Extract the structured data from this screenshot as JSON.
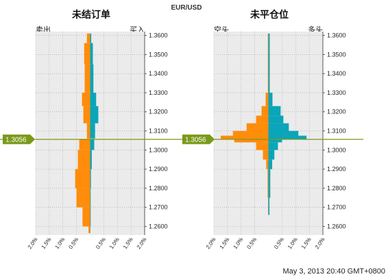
{
  "chart_data": {
    "title": "EUR/USD",
    "timestamp": "May 3, 2013 20:40 GMT+0800",
    "current_price": "1.3056",
    "colors": {
      "buy": "#0aa5b8",
      "sell": "#ff8c0a",
      "price_line": "#7a9a1a",
      "plot_bg": "#ebebeb"
    },
    "panels": [
      {
        "type": "bar",
        "orientation": "horizontal",
        "title": "未结订单",
        "left_label": "卖出",
        "right_label": "买入",
        "y_ticks": [
          "1.3600",
          "1.3500",
          "1.3400",
          "1.3300",
          "1.3200",
          "1.3100",
          "1.3000",
          "1.2900",
          "1.2800",
          "1.2700",
          "1.2600"
        ],
        "x_ticks": [
          "2.0%",
          "1.5%",
          "1.0%",
          "0.5%",
          "0.5%",
          "1.0%",
          "1.5%",
          "2.0%"
        ],
        "xlim": [
          -2.0,
          2.0
        ],
        "ylim": [
          1.2555,
          1.362
        ],
        "series": [
          {
            "name": "卖出",
            "color": "#ff8c0a",
            "ranges": [
              {
                "from": 1.361,
                "to": 1.356,
                "value": 0.12
              },
              {
                "from": 1.356,
                "to": 1.345,
                "value": 0.22
              },
              {
                "from": 1.345,
                "to": 1.33,
                "value": 0.2
              },
              {
                "from": 1.33,
                "to": 1.323,
                "value": 0.3
              },
              {
                "from": 1.323,
                "to": 1.314,
                "value": 0.25
              },
              {
                "from": 1.314,
                "to": 1.306,
                "value": 0.12
              },
              {
                "from": 1.3056,
                "to": 1.3,
                "value": 0.4
              },
              {
                "from": 1.3,
                "to": 1.29,
                "value": 0.45
              },
              {
                "from": 1.29,
                "to": 1.28,
                "value": 0.55
              },
              {
                "from": 1.28,
                "to": 1.27,
                "value": 0.5
              },
              {
                "from": 1.27,
                "to": 1.26,
                "value": 0.28
              },
              {
                "from": 1.26,
                "to": 1.2565,
                "value": 0.06
              }
            ]
          },
          {
            "name": "买入",
            "color": "#0aa5b8",
            "ranges": [
              {
                "from": 1.361,
                "to": 1.356,
                "value": 0.04
              },
              {
                "from": 1.356,
                "to": 1.345,
                "value": 0.1
              },
              {
                "from": 1.345,
                "to": 1.33,
                "value": 0.12
              },
              {
                "from": 1.33,
                "to": 1.323,
                "value": 0.22
              },
              {
                "from": 1.323,
                "to": 1.314,
                "value": 0.3
              },
              {
                "from": 1.314,
                "to": 1.306,
                "value": 0.18
              },
              {
                "from": 1.3056,
                "to": 1.3,
                "value": 0.15
              },
              {
                "from": 1.3,
                "to": 1.29,
                "value": 0.06
              },
              {
                "from": 1.29,
                "to": 1.28,
                "value": 0.03
              },
              {
                "from": 1.28,
                "to": 1.27,
                "value": 0.02
              },
              {
                "from": 1.27,
                "to": 1.26,
                "value": 0.02
              },
              {
                "from": 1.26,
                "to": 1.2565,
                "value": 0.01
              }
            ]
          }
        ]
      },
      {
        "type": "bar",
        "orientation": "horizontal",
        "title": "未平仓位",
        "left_label": "空头",
        "right_label": "多头",
        "y_ticks": [
          "1.3600",
          "1.3500",
          "1.3400",
          "1.3300",
          "1.3200",
          "1.3100",
          "1.3000",
          "1.2900",
          "1.2800",
          "1.2700",
          "1.2600"
        ],
        "x_ticks": [
          "2.0%",
          "1.5%",
          "1.0%",
          "0.5%",
          "0.5%",
          "1.0%",
          "1.5%",
          "2.0%"
        ],
        "xlim": [
          -2.0,
          2.0
        ],
        "ylim": [
          1.2555,
          1.362
        ],
        "series": [
          {
            "name": "空头",
            "color": "#ff8c0a",
            "ranges": [
              {
                "from": 1.361,
                "to": 1.33,
                "value": 0.02
              },
              {
                "from": 1.33,
                "to": 1.323,
                "value": 0.1
              },
              {
                "from": 1.323,
                "to": 1.318,
                "value": 0.25
              },
              {
                "from": 1.318,
                "to": 1.314,
                "value": 0.45
              },
              {
                "from": 1.314,
                "to": 1.31,
                "value": 0.8
              },
              {
                "from": 1.31,
                "to": 1.3075,
                "value": 1.3
              },
              {
                "from": 1.3075,
                "to": 1.3056,
                "value": 1.75
              },
              {
                "from": 1.3056,
                "to": 1.304,
                "value": 1.25
              },
              {
                "from": 1.304,
                "to": 1.3,
                "value": 0.45
              },
              {
                "from": 1.3,
                "to": 1.295,
                "value": 0.2
              },
              {
                "from": 1.295,
                "to": 1.29,
                "value": 0.08
              },
              {
                "from": 1.29,
                "to": 1.275,
                "value": 0.03
              },
              {
                "from": 1.275,
                "to": 1.266,
                "value": 0.01
              }
            ]
          },
          {
            "name": "多头",
            "color": "#0aa5b8",
            "ranges": [
              {
                "from": 1.361,
                "to": 1.33,
                "value": 0.05
              },
              {
                "from": 1.33,
                "to": 1.323,
                "value": 0.15
              },
              {
                "from": 1.323,
                "to": 1.318,
                "value": 0.45
              },
              {
                "from": 1.318,
                "to": 1.314,
                "value": 0.55
              },
              {
                "from": 1.314,
                "to": 1.31,
                "value": 0.75
              },
              {
                "from": 1.31,
                "to": 1.3075,
                "value": 1.1
              },
              {
                "from": 1.3075,
                "to": 1.3056,
                "value": 1.4
              },
              {
                "from": 1.3056,
                "to": 1.304,
                "value": 0.5
              },
              {
                "from": 1.304,
                "to": 1.3,
                "value": 0.35
              },
              {
                "from": 1.3,
                "to": 1.295,
                "value": 0.22
              },
              {
                "from": 1.295,
                "to": 1.29,
                "value": 0.14
              },
              {
                "from": 1.29,
                "to": 1.275,
                "value": 0.07
              },
              {
                "from": 1.275,
                "to": 1.266,
                "value": 0.04
              }
            ]
          }
        ]
      }
    ]
  }
}
